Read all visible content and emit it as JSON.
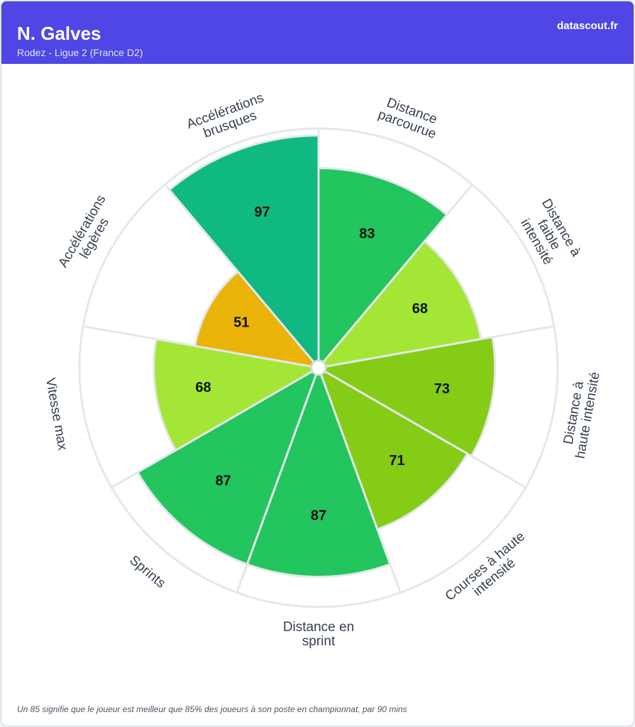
{
  "header": {
    "title": "N. Galves",
    "subtitle": "Rodez - Ligue 2 (France D2)",
    "brand": "datascout.fr"
  },
  "chart_data": {
    "type": "polar-bar",
    "rlim": [
      0,
      100
    ],
    "categories": [
      [
        "Distance",
        "parcourue"
      ],
      [
        "Distance à",
        "faible",
        "intensité"
      ],
      [
        "Distance à",
        "haute intensité"
      ],
      [
        "Courses à haute",
        "intensité"
      ],
      [
        "Distance en",
        "sprint"
      ],
      [
        "Sprints"
      ],
      [
        "Vitesse max"
      ],
      [
        "Accélérations",
        "légères"
      ],
      [
        "Accélérations",
        "brusques"
      ]
    ],
    "values": [
      83,
      68,
      73,
      71,
      87,
      87,
      68,
      51,
      97
    ],
    "colors": [
      "#22c55e",
      "#a3e635",
      "#84cc16",
      "#84cc16",
      "#22c55e",
      "#22c55e",
      "#a3e635",
      "#eab308",
      "#10b981"
    ]
  },
  "footer": "Un 85 signifie que le joueur est meilleur que 85% des joueurs à son poste en championnat, par 90 mins"
}
